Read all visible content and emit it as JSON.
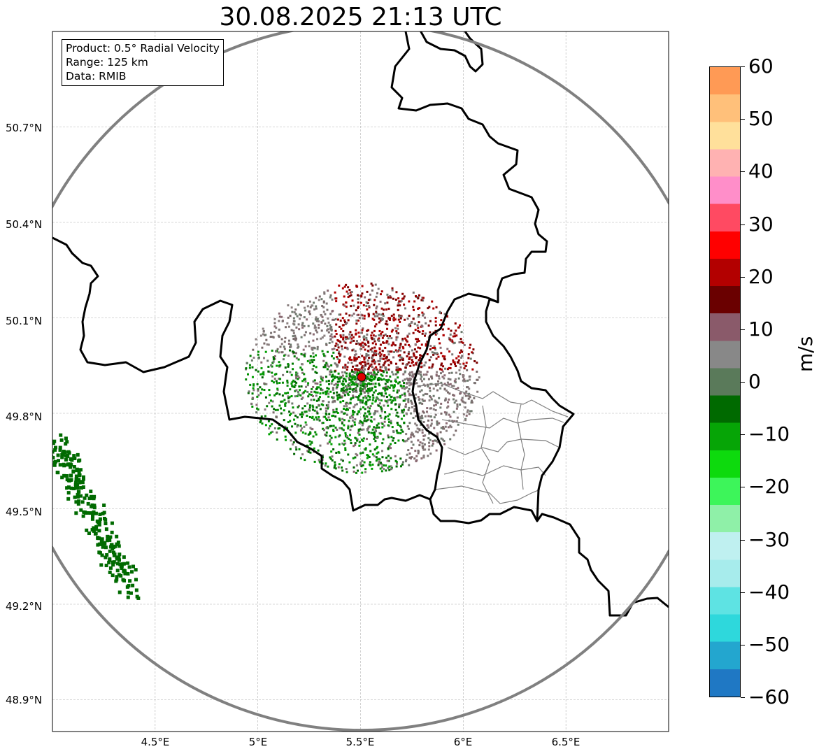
{
  "title": "30.08.2025 21:13 UTC",
  "info": {
    "product": "Product: 0.5° Radial Velocity",
    "range": "Range: 125 km",
    "data": "Data: RMIB"
  },
  "map": {
    "lon_range": [
      4.0,
      7.0
    ],
    "lat_range": [
      48.8,
      51.0
    ],
    "radar_site": {
      "lon": 5.505,
      "lat": 49.914
    },
    "range_ring_km": 125,
    "lat_ticks": [
      "50.7°N",
      "50.4°N",
      "50.1°N",
      "49.8°N",
      "49.5°N",
      "49.2°N",
      "48.9°N"
    ],
    "lon_ticks": [
      "4.5°E",
      "5°E",
      "5.5°E",
      "6°E",
      "6.5°E"
    ],
    "colors": {
      "border": "#000000",
      "regions": "#808080",
      "range_ring": "#808080",
      "radar_marker": "#e00000"
    }
  },
  "colorbar": {
    "label": "m/s",
    "min": -60,
    "max": 60,
    "ticks": [
      "60",
      "50",
      "40",
      "30",
      "20",
      "10",
      "0",
      "−10",
      "−20",
      "−30",
      "−40",
      "−50",
      "−60"
    ],
    "stops": [
      "#1f78c4",
      "#23a6cf",
      "#2ed8dc",
      "#5ee3e3",
      "#a7ecec",
      "#bff0f0",
      "#8ff0a8",
      "#3df55a",
      "#0dda0d",
      "#06a506",
      "#006a00",
      "#5a7a5a",
      "#888888",
      "#8a5a6a",
      "#6a0000",
      "#b30000",
      "#ff0000",
      "#ff4a62",
      "#ff8ec9",
      "#ffb2b2",
      "#ffe09b",
      "#ffc07a",
      "#ff9a55"
    ]
  },
  "legend_ticks_desc": "tick labels rendered from colorbar.ticks"
}
